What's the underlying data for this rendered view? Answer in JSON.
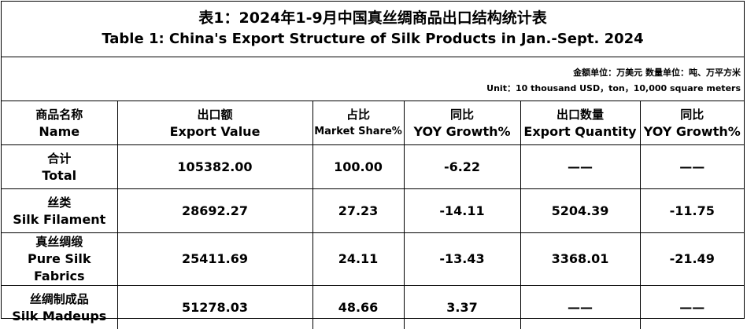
{
  "title": {
    "zh": "表1：2024年1-9月中国真丝绸商品出口结构统计表",
    "en": "Table 1: China's Export Structure of Silk Products in Jan.-Sept. 2024"
  },
  "units": {
    "zh": "金额单位：万美元  数量单位：吨、万平方米",
    "en": "Unit：10 thousand USD，ton，10,000 square meters"
  },
  "table": {
    "header": [
      {
        "zh": "商品名称",
        "en": "Name"
      },
      {
        "zh": "出口额",
        "en": "Export Value"
      },
      {
        "zh": "占比",
        "en": "Market Share%"
      },
      {
        "zh": "同比",
        "en": "YOY Growth%"
      },
      {
        "zh": "出口数量",
        "en": "Export Quantity"
      },
      {
        "zh": "同比",
        "en": "YOY Growth%"
      }
    ],
    "rows": [
      [
        {
          "zh": "合计",
          "en": "Total"
        },
        "105382.00",
        "100.00",
        "-6.22",
        "——",
        "——"
      ],
      [
        {
          "zh": "丝类",
          "en": "Silk Filament"
        },
        "28692.27",
        "27.23",
        "-14.11",
        "5204.39",
        "-11.75"
      ],
      [
        {
          "zh": "真丝绸缎",
          "en": "Pure Silk Fabrics"
        },
        "25411.69",
        "24.11",
        "-13.43",
        "3368.01",
        "-21.49"
      ],
      [
        {
          "zh": "丝绸制成品",
          "en": "Silk Madeups"
        },
        "51278.03",
        "48.66",
        "3.37",
        "——",
        "——"
      ]
    ]
  }
}
